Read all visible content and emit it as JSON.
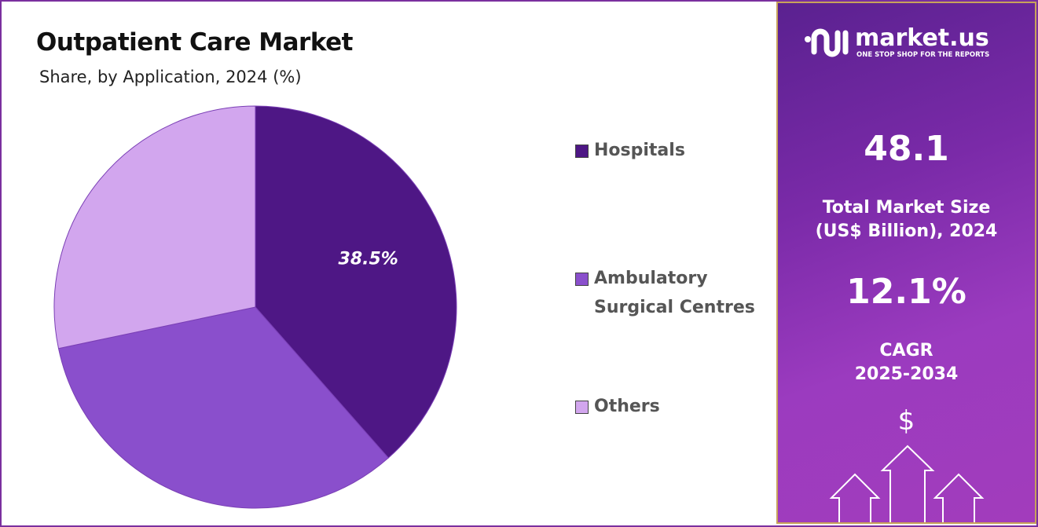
{
  "chart_data": {
    "type": "pie",
    "title": "Outpatient Care Market",
    "subtitle": "Share, by Application, 2024 (%)",
    "slices": [
      {
        "label": "Hospitals",
        "value": 38.5,
        "color": "#4e1785",
        "data_label": "38.5%"
      },
      {
        "label": "Ambulatory Surgical Centres",
        "value": 33.2,
        "color": "#8a4fcc"
      },
      {
        "label": "Others",
        "value": 28.3,
        "color": "#d2a6ee"
      }
    ],
    "legend_position": "right",
    "legend": [
      [
        "Hospitals"
      ],
      [
        "Ambulatory",
        "Surgical Centres"
      ],
      [
        "Others"
      ]
    ]
  },
  "panel": {
    "brand": "market.us",
    "tagline": "ONE STOP SHOP FOR THE REPORTS",
    "market_size": "48.1",
    "market_size_label_1": "Total Market Size",
    "market_size_label_2": "(US$ Billion), 2024",
    "cagr": "12.1%",
    "cagr_label_1": "CAGR",
    "cagr_label_2": "2025-2034",
    "dollar": "$"
  }
}
